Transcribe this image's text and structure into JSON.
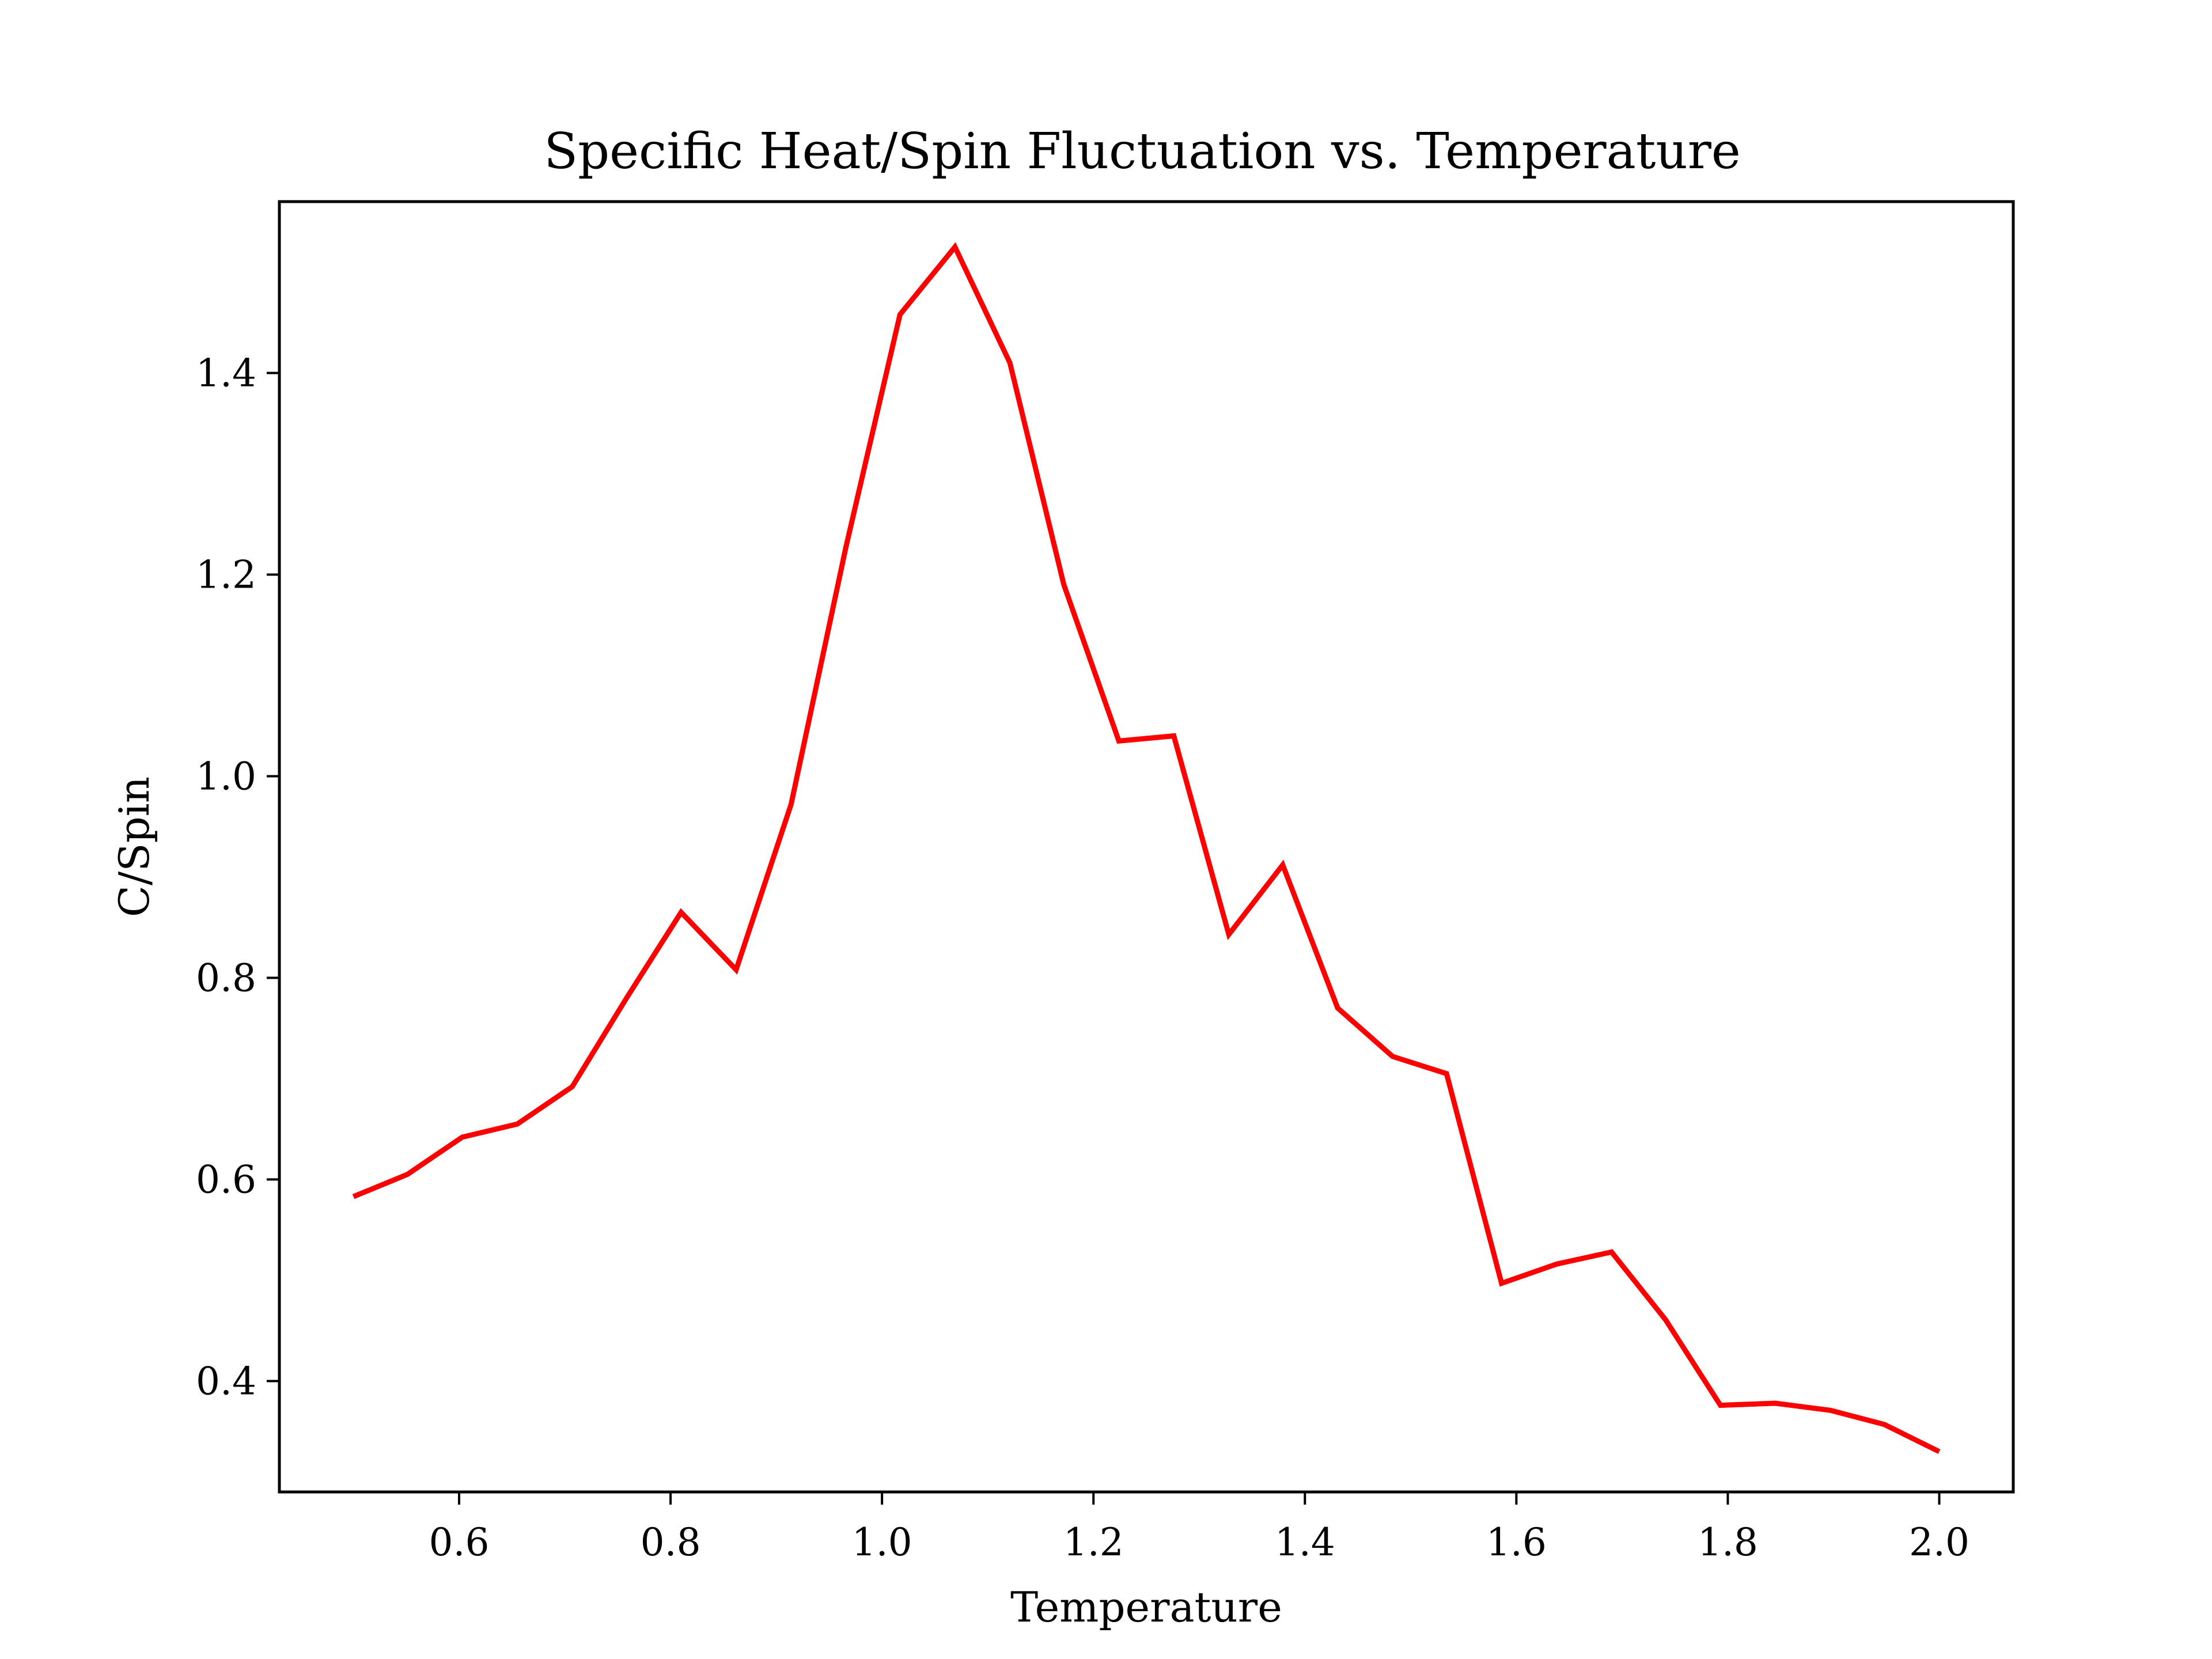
{
  "chart_data": {
    "type": "line",
    "title": "Specific Heat/Spin Fluctuation vs. Temperature",
    "xlabel": "Temperature",
    "ylabel": "C/Spin",
    "xlim": [
      0.43,
      2.07
    ],
    "ylim": [
      0.29,
      1.57
    ],
    "xticks": [
      0.6,
      0.8,
      1.0,
      1.2,
      1.4,
      1.6,
      1.8,
      2.0
    ],
    "xtick_labels": [
      "0.6",
      "0.8",
      "1.0",
      "1.2",
      "1.4",
      "1.6",
      "1.8",
      "2.0"
    ],
    "yticks": [
      0.4,
      0.6,
      0.8,
      1.0,
      1.2,
      1.4
    ],
    "ytick_labels": [
      "0.4",
      "0.6",
      "0.8",
      "1.0",
      "1.2",
      "1.4"
    ],
    "grid": false,
    "series": [
      {
        "color": "#ff0000",
        "x": [
          0.5,
          0.551,
          0.603,
          0.655,
          0.707,
          0.759,
          0.81,
          0.862,
          0.914,
          0.966,
          1.017,
          1.069,
          1.121,
          1.172,
          1.224,
          1.276,
          1.328,
          1.379,
          1.431,
          1.483,
          1.534,
          1.586,
          1.638,
          1.69,
          1.741,
          1.793,
          1.845,
          1.897,
          1.948,
          2.0
        ],
        "values": [
          0.583,
          0.605,
          0.642,
          0.655,
          0.692,
          0.781,
          0.865,
          0.808,
          0.972,
          1.228,
          1.458,
          1.525,
          1.41,
          1.19,
          1.035,
          1.04,
          0.843,
          0.912,
          0.77,
          0.722,
          0.705,
          0.497,
          0.516,
          0.528,
          0.461,
          0.376,
          0.378,
          0.371,
          0.357,
          0.33
        ]
      }
    ]
  }
}
